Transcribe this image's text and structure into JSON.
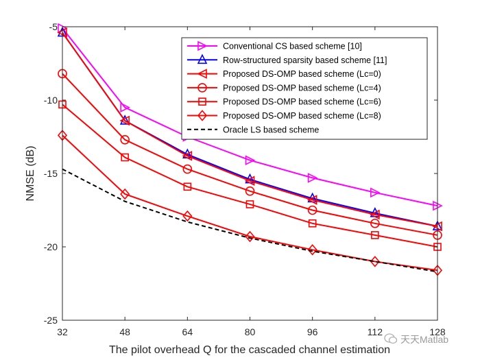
{
  "chart_data": {
    "type": "line",
    "title": "",
    "xlabel": "The pilot overhead Q for the cascaded channel estimation",
    "ylabel": "NMSE (dB)",
    "x": [
      32,
      48,
      64,
      80,
      96,
      112,
      128
    ],
    "xticks": [
      "32",
      "48",
      "64",
      "80",
      "96",
      "112",
      "128"
    ],
    "yticks": [
      "-5",
      "-10",
      "-15",
      "-20",
      "-25"
    ],
    "xlim": [
      32,
      128
    ],
    "ylim": [
      -25,
      -5
    ],
    "legend_position": "top-right",
    "series": [
      {
        "name": "Conventional CS based scheme [10]",
        "color": "#ff00ff",
        "marker": "triangle-right",
        "dash": "solid",
        "values": [
          -5.1,
          -10.5,
          -12.5,
          -14.1,
          -15.3,
          -16.3,
          -17.2
        ]
      },
      {
        "name": "Row-structured sparsity based scheme [11]",
        "color": "#0000ff",
        "marker": "triangle-up",
        "dash": "solid",
        "values": [
          -5.4,
          -11.4,
          -13.7,
          -15.4,
          -16.7,
          -17.7,
          -18.6
        ]
      },
      {
        "name": "Proposed DS-OMP based scheme (Lc=0)",
        "color": "#ff0000",
        "marker": "triangle-left",
        "dash": "solid",
        "values": [
          -5.4,
          -11.4,
          -13.8,
          -15.5,
          -16.8,
          -17.8,
          -18.6
        ]
      },
      {
        "name": "Proposed DS-OMP based scheme (Lc=4)",
        "color": "#ff0000",
        "marker": "circle",
        "dash": "solid",
        "values": [
          -8.2,
          -12.7,
          -14.7,
          -16.2,
          -17.5,
          -18.4,
          -19.2
        ]
      },
      {
        "name": "Proposed DS-OMP based scheme (Lc=6)",
        "color": "#ff0000",
        "marker": "square",
        "dash": "solid",
        "values": [
          -10.3,
          -13.9,
          -15.9,
          -17.1,
          -18.4,
          -19.2,
          -20.0
        ]
      },
      {
        "name": "Proposed DS-OMP based scheme (Lc=8)",
        "color": "#ff0000",
        "marker": "diamond",
        "dash": "solid",
        "values": [
          -12.4,
          -16.4,
          -17.9,
          -19.3,
          -20.2,
          -21.0,
          -21.6
        ]
      },
      {
        "name": "Oracle LS based scheme",
        "color": "#000000",
        "marker": "none",
        "dash": "dashed",
        "values": [
          -14.7,
          -16.9,
          -18.3,
          -19.4,
          -20.3,
          -21.0,
          -21.7
        ]
      }
    ]
  },
  "watermark": {
    "text": "天天Matlab",
    "icon": "wechat-icon"
  }
}
